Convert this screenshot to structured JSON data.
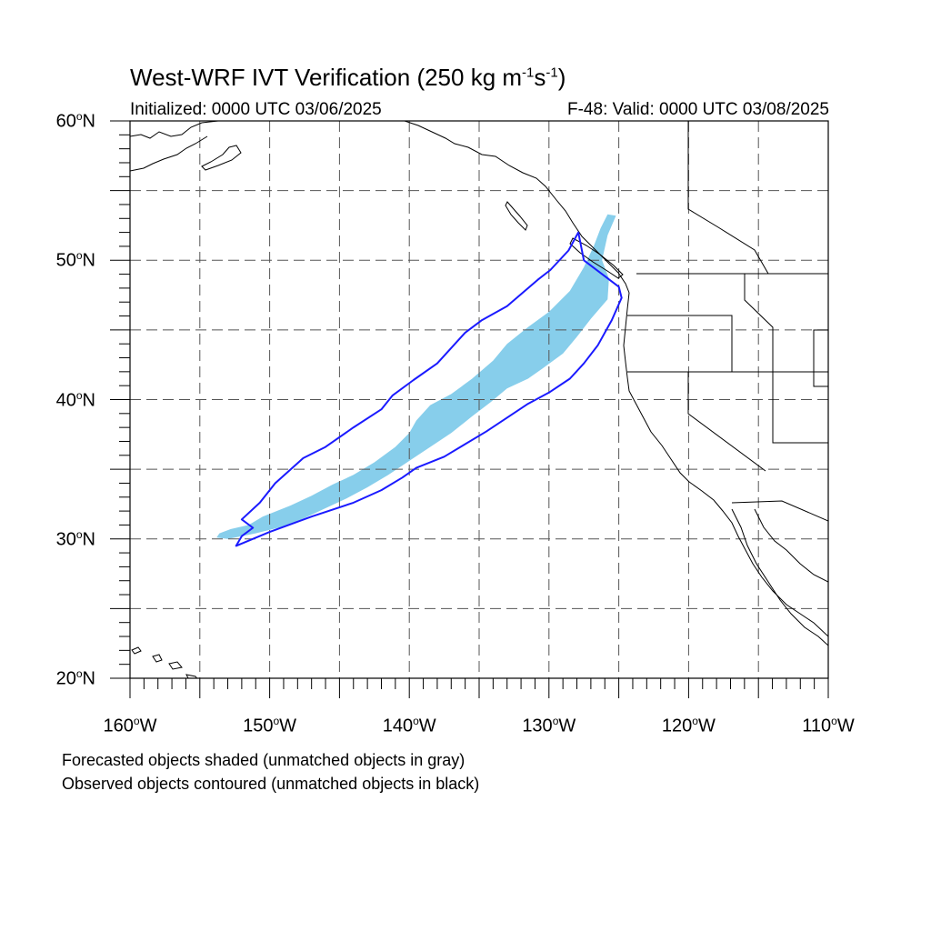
{
  "title": {
    "main": "West-WRF IVT Verification (250 kg m",
    "exp1": "-1",
    "mid": "s",
    "exp2": "-1",
    "end": ")"
  },
  "initialized": "Initialized: 0000 UTC 03/06/2025",
  "valid": "F-48: Valid: 0000 UTC 03/08/2025",
  "lat_labels": [
    {
      "num": "60",
      "deg": "o",
      "dir": "N"
    },
    {
      "num": "50",
      "deg": "o",
      "dir": "N"
    },
    {
      "num": "40",
      "deg": "o",
      "dir": "N"
    },
    {
      "num": "30",
      "deg": "o",
      "dir": "N"
    },
    {
      "num": "20",
      "deg": "o",
      "dir": "N"
    }
  ],
  "lon_labels": [
    {
      "num": "160",
      "deg": "o",
      "dir": "W"
    },
    {
      "num": "150",
      "deg": "o",
      "dir": "W"
    },
    {
      "num": "140",
      "deg": "o",
      "dir": "W"
    },
    {
      "num": "130",
      "deg": "o",
      "dir": "W"
    },
    {
      "num": "120",
      "deg": "o",
      "dir": "W"
    },
    {
      "num": "110",
      "deg": "o",
      "dir": "W"
    }
  ],
  "footnote_forecast": "Forecasted objects shaded (unmatched objects in gray)",
  "footnote_observed": "Observed objects contoured (unmatched objects in black)",
  "colors": {
    "forecast_fill": "#87ceeb",
    "observed_contour": "#1a1aff",
    "grid": "#555555",
    "coast": "#000000"
  },
  "map_extent": {
    "lon_min": -160,
    "lon_max": -110,
    "lat_min": 20,
    "lat_max": 60
  },
  "chart_data": {
    "type": "map",
    "title": "West-WRF IVT Verification (250 kg m-1s-1)",
    "forecast_object": {
      "style": "shaded",
      "polygon_lonlat": [
        [
          -153.6,
          30.4
        ],
        [
          -152.8,
          30.7
        ],
        [
          -151.5,
          31.0
        ],
        [
          -150.5,
          31.6
        ],
        [
          -148.5,
          32.4
        ],
        [
          -147.0,
          33.1
        ],
        [
          -145.5,
          33.9
        ],
        [
          -144.0,
          34.6
        ],
        [
          -142.5,
          35.5
        ],
        [
          -141.0,
          36.6
        ],
        [
          -140.0,
          37.6
        ],
        [
          -139.5,
          38.5
        ],
        [
          -138.5,
          39.6
        ],
        [
          -137.0,
          40.4
        ],
        [
          -135.5,
          41.5
        ],
        [
          -134.0,
          42.8
        ],
        [
          -133.0,
          44.0
        ],
        [
          -131.5,
          45.2
        ],
        [
          -130.0,
          46.3
        ],
        [
          -128.5,
          47.8
        ],
        [
          -127.5,
          49.5
        ],
        [
          -126.8,
          51.0
        ],
        [
          -126.3,
          52.3
        ],
        [
          -125.8,
          53.3
        ],
        [
          -125.2,
          53.2
        ],
        [
          -125.8,
          51.8
        ],
        [
          -126.2,
          50.0
        ],
        [
          -125.7,
          48.7
        ],
        [
          -125.8,
          47.2
        ],
        [
          -127.0,
          45.8
        ],
        [
          -128.0,
          44.5
        ],
        [
          -129.0,
          43.3
        ],
        [
          -130.5,
          42.2
        ],
        [
          -131.5,
          41.5
        ],
        [
          -133.0,
          40.8
        ],
        [
          -134.2,
          39.8
        ],
        [
          -135.5,
          38.8
        ],
        [
          -137.0,
          37.6
        ],
        [
          -138.5,
          36.6
        ],
        [
          -140.0,
          35.6
        ],
        [
          -141.5,
          34.6
        ],
        [
          -143.0,
          33.7
        ],
        [
          -144.5,
          32.9
        ],
        [
          -146.0,
          32.2
        ],
        [
          -147.5,
          31.5
        ],
        [
          -149.0,
          30.9
        ],
        [
          -151.0,
          30.4
        ],
        [
          -153.0,
          30.0
        ],
        [
          -153.8,
          30.1
        ]
      ]
    },
    "observed_object": {
      "style": "contour",
      "polygon_lonlat": [
        [
          -152.4,
          29.5
        ],
        [
          -150.0,
          30.5
        ],
        [
          -147.0,
          31.6
        ],
        [
          -144.0,
          32.6
        ],
        [
          -142.0,
          33.5
        ],
        [
          -140.5,
          34.4
        ],
        [
          -139.5,
          35.1
        ],
        [
          -137.5,
          35.9
        ],
        [
          -136.0,
          36.8
        ],
        [
          -134.5,
          37.7
        ],
        [
          -133.0,
          38.7
        ],
        [
          -131.5,
          39.7
        ],
        [
          -130.0,
          40.5
        ],
        [
          -128.5,
          41.5
        ],
        [
          -127.5,
          42.6
        ],
        [
          -126.5,
          43.9
        ],
        [
          -125.5,
          45.7
        ],
        [
          -124.8,
          47.3
        ],
        [
          -125.0,
          48.1
        ],
        [
          -127.5,
          50.0
        ],
        [
          -127.9,
          52.0
        ],
        [
          -128.6,
          50.7
        ],
        [
          -129.9,
          49.3
        ],
        [
          -130.8,
          48.6
        ],
        [
          -133.0,
          46.7
        ],
        [
          -134.8,
          45.7
        ],
        [
          -136.0,
          44.8
        ],
        [
          -138.0,
          42.6
        ],
        [
          -139.7,
          41.4
        ],
        [
          -141.2,
          40.3
        ],
        [
          -142.0,
          39.3
        ],
        [
          -144.0,
          38.0
        ],
        [
          -146.0,
          36.6
        ],
        [
          -147.6,
          35.8
        ],
        [
          -149.6,
          34.0
        ],
        [
          -150.7,
          32.6
        ],
        [
          -152.0,
          31.4
        ],
        [
          -151.2,
          30.8
        ],
        [
          -152.0,
          30.2
        ]
      ]
    },
    "graticule": {
      "lon_step": 5,
      "lat_step": 5
    },
    "ticks": {
      "lon": [
        -160,
        -150,
        -140,
        -130,
        -120,
        -110
      ],
      "lat": [
        60,
        50,
        40,
        30,
        20
      ]
    }
  }
}
